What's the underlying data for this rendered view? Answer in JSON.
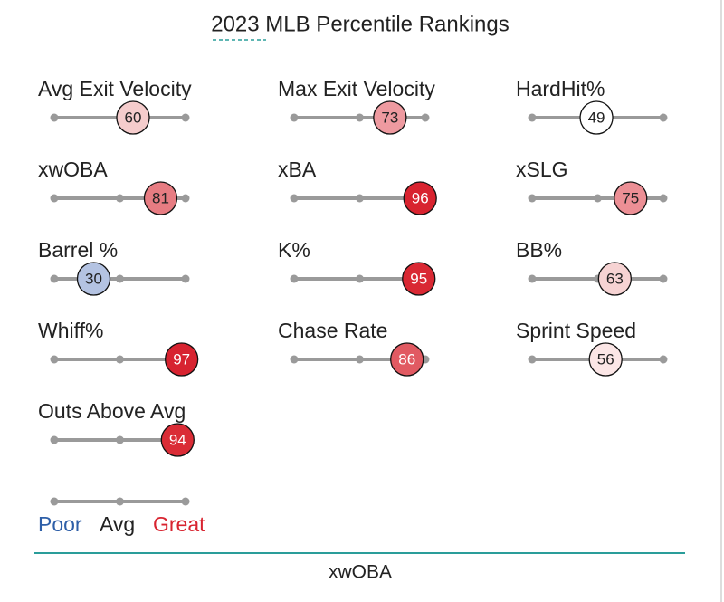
{
  "chart_data": {
    "type": "percentile",
    "title": "2023 MLB Percentile Rankings",
    "categories": [
      "Avg Exit Velocity",
      "Max Exit Velocity",
      "HardHit%",
      "xwOBA",
      "xBA",
      "xSLG",
      "Barrel %",
      "K%",
      "BB%",
      "Whiff%",
      "Chase Rate",
      "Sprint Speed",
      "Outs Above Avg"
    ],
    "values": [
      60,
      73,
      49,
      81,
      96,
      75,
      30,
      95,
      63,
      97,
      86,
      56,
      94
    ],
    "colors": [
      "#f5cccc",
      "#ee9aa0",
      "#ffffff",
      "#e77c82",
      "#d8232f",
      "#ec8f95",
      "#b4c3e2",
      "#d92833",
      "#f6d3d3",
      "#d72330",
      "#e15a62",
      "#fbe6e6",
      "#da2c36"
    ],
    "xlim": [
      0,
      100
    ],
    "xticks": [
      0,
      50,
      100
    ],
    "legend": [
      {
        "name": "Poor",
        "color": "#2e5fa8"
      },
      {
        "name": "Avg",
        "color": "#222222"
      },
      {
        "name": "Great",
        "color": "#d8232f"
      }
    ],
    "footer": "xwOBA"
  }
}
